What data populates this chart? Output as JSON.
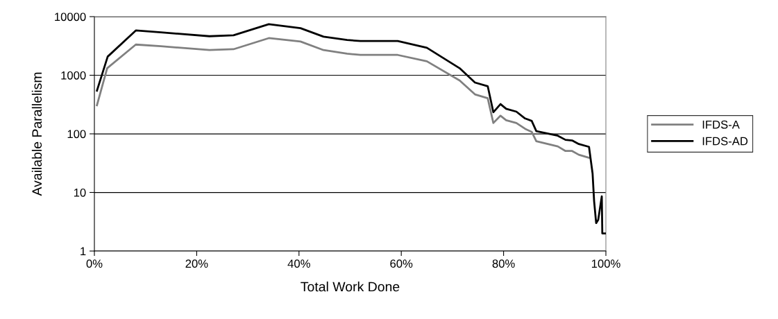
{
  "chart_data": {
    "type": "line",
    "xlabel": "Total Work Done",
    "ylabel": "Available Parallelism",
    "log": "y",
    "grid": "y",
    "legend": "right",
    "marker": "none",
    "line_style": "solid",
    "xlim": [
      0,
      100
    ],
    "ylim": [
      1,
      10000
    ],
    "xticks": [
      {
        "value": 0,
        "label": "0%"
      },
      {
        "value": 20,
        "label": "20%"
      },
      {
        "value": 40,
        "label": "40%"
      },
      {
        "value": 60,
        "label": "60%"
      },
      {
        "value": 80,
        "label": "80%"
      },
      {
        "value": 100,
        "label": "100%"
      }
    ],
    "yticks": [
      1,
      10,
      100,
      1000,
      10000
    ],
    "series": [
      {
        "name": "IFDS-A",
        "color": "#808080",
        "x": [
          0.5,
          2.5,
          8.1,
          13,
          22.5,
          27.2,
          34.1,
          40.3,
          44.8,
          49.4,
          52.0,
          59.3,
          65.0,
          71.4,
          74.4,
          76.9,
          78.0,
          79.4,
          80.5,
          82.5,
          84.2,
          85.5,
          86.4,
          90.6,
          92.1,
          93.4,
          94.7,
          96.7
        ],
        "values": [
          308,
          1320,
          3340,
          3130,
          2690,
          2780,
          4300,
          3760,
          2690,
          2340,
          2220,
          2220,
          1730,
          815,
          472,
          405,
          153,
          204,
          171,
          153,
          122,
          108,
          75,
          61,
          51,
          51,
          44,
          39
        ]
      },
      {
        "name": "IFDS-AD",
        "color": "#000000",
        "x": [
          0.5,
          2.6,
          8.1,
          13,
          22.5,
          27.2,
          34.1,
          40.3,
          44.8,
          49.4,
          52.0,
          59.3,
          65.0,
          71.4,
          74.4,
          76.9,
          78.0,
          79.4,
          80.5,
          82.5,
          84.2,
          85.5,
          86.4,
          90.6,
          92.1,
          93.4,
          94.7,
          96.7,
          97.4,
          97.7,
          98.1,
          98.5,
          99.2,
          99.3,
          100
        ],
        "values": [
          546,
          2080,
          5810,
          5400,
          4630,
          4800,
          7430,
          6360,
          4550,
          4000,
          3830,
          3830,
          2940,
          1320,
          751,
          650,
          234,
          322,
          268,
          239,
          183,
          166,
          111,
          93,
          79,
          77,
          67,
          60,
          21,
          7.1,
          3,
          3.4,
          8.6,
          2,
          2
        ]
      }
    ]
  }
}
